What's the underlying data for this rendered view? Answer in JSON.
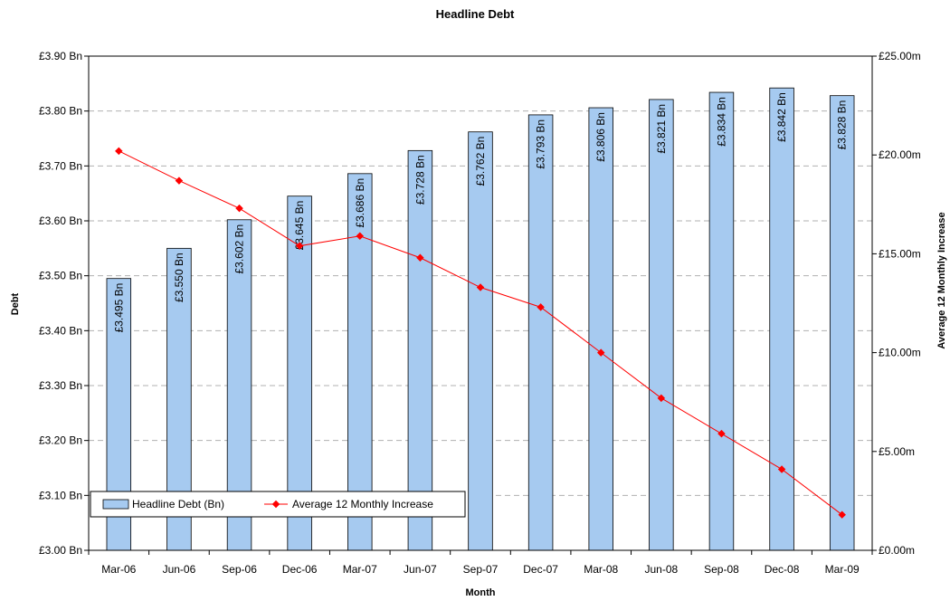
{
  "chart_data": {
    "type": "bar",
    "title": "Headline Debt",
    "xlabel": "Month",
    "ylabel": "Debt",
    "y2label": "Average 12 Monthly Increase",
    "categories": [
      "Mar-06",
      "Jun-06",
      "Sep-06",
      "Dec-06",
      "Mar-07",
      "Jun-07",
      "Sep-07",
      "Dec-07",
      "Mar-08",
      "Jun-08",
      "Sep-08",
      "Dec-08",
      "Mar-09"
    ],
    "ylim": [
      3.0,
      3.9
    ],
    "y2lim": [
      0,
      25
    ],
    "yticks": [
      "£3.00 Bn",
      "£3.10 Bn",
      "£3.20 Bn",
      "£3.30 Bn",
      "£3.40 Bn",
      "£3.50 Bn",
      "£3.60 Bn",
      "£3.70 Bn",
      "£3.80 Bn",
      "£3.90 Bn"
    ],
    "y2ticks": [
      "£0.00m",
      "£5.00m",
      "£10.00m",
      "£15.00m",
      "£20.00m",
      "£25.00m"
    ],
    "grid": true,
    "legend_position": "bottom-left",
    "series": [
      {
        "name": "Headline Debt (Bn)",
        "type": "bar",
        "axis": "left",
        "color": "#a6caf0",
        "values": [
          3.495,
          3.55,
          3.602,
          3.645,
          3.686,
          3.728,
          3.762,
          3.793,
          3.806,
          3.821,
          3.834,
          3.842,
          3.828
        ],
        "labels": [
          "£3.495 Bn",
          "£3.550 Bn",
          "£3.602 Bn",
          "£3.645 Bn",
          "£3.686 Bn",
          "£3.728 Bn",
          "£3.762 Bn",
          "£3.793 Bn",
          "£3.806 Bn",
          "£3.821 Bn",
          "£3.834 Bn",
          "£3.842 Bn",
          "£3.828 Bn"
        ]
      },
      {
        "name": "Average 12 Monthly Increase",
        "type": "line",
        "axis": "right",
        "color": "#ff0000",
        "values": [
          20.2,
          18.7,
          17.3,
          15.4,
          15.9,
          14.8,
          13.3,
          12.3,
          10.0,
          7.7,
          5.9,
          4.1,
          1.8
        ]
      }
    ]
  }
}
